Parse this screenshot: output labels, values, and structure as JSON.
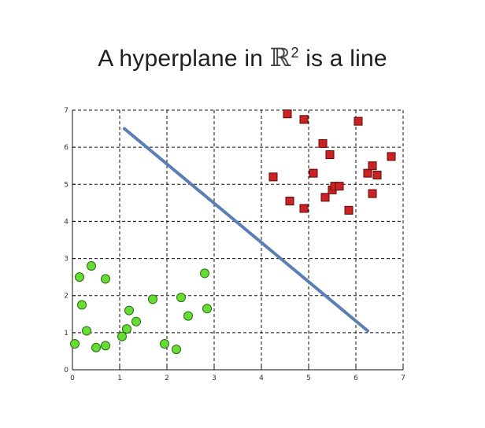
{
  "title": {
    "prefix": "A hyperplane in ",
    "symbol": "ℝ",
    "superscript": "2",
    "suffix": " is a line"
  },
  "chart_data": {
    "type": "scatter",
    "title": "A hyperplane in ℝ² is a line",
    "xlabel": "",
    "ylabel": "",
    "xlim": [
      0,
      7
    ],
    "ylim": [
      0,
      7
    ],
    "xticks": [
      "0",
      "1",
      "2",
      "3",
      "4",
      "5",
      "6",
      "7"
    ],
    "yticks": [
      "0",
      "1",
      "2",
      "3",
      "4",
      "5",
      "6",
      "7"
    ],
    "grid": true,
    "series": [
      {
        "marker": "circle",
        "color": "#66dd33",
        "points": [
          [
            0.05,
            0.7
          ],
          [
            0.15,
            2.5
          ],
          [
            0.2,
            1.75
          ],
          [
            0.3,
            1.05
          ],
          [
            0.4,
            2.8
          ],
          [
            0.5,
            0.6
          ],
          [
            0.7,
            0.65
          ],
          [
            0.7,
            2.45
          ],
          [
            1.05,
            0.9
          ],
          [
            1.15,
            1.1
          ],
          [
            1.2,
            1.6
          ],
          [
            1.35,
            1.3
          ],
          [
            1.7,
            1.9
          ],
          [
            1.95,
            0.7
          ],
          [
            2.2,
            0.55
          ],
          [
            2.3,
            1.95
          ],
          [
            2.45,
            1.45
          ],
          [
            2.8,
            2.6
          ],
          [
            2.85,
            1.65
          ]
        ]
      },
      {
        "marker": "square",
        "color": "#cc2222",
        "points": [
          [
            4.25,
            5.2
          ],
          [
            4.55,
            6.9
          ],
          [
            4.6,
            4.55
          ],
          [
            4.9,
            6.75
          ],
          [
            4.9,
            4.35
          ],
          [
            5.1,
            5.3
          ],
          [
            5.3,
            6.1
          ],
          [
            5.35,
            4.65
          ],
          [
            5.45,
            5.8
          ],
          [
            5.5,
            4.85
          ],
          [
            5.55,
            4.95
          ],
          [
            5.65,
            4.95
          ],
          [
            5.85,
            4.3
          ],
          [
            6.05,
            6.7
          ],
          [
            6.25,
            5.3
          ],
          [
            6.35,
            5.5
          ],
          [
            6.35,
            4.75
          ],
          [
            6.45,
            5.25
          ],
          [
            6.75,
            5.75
          ]
        ]
      }
    ],
    "line": {
      "color": "#5b7fb5",
      "points": [
        [
          1.1,
          6.5
        ],
        [
          6.25,
          1.05
        ]
      ]
    }
  }
}
